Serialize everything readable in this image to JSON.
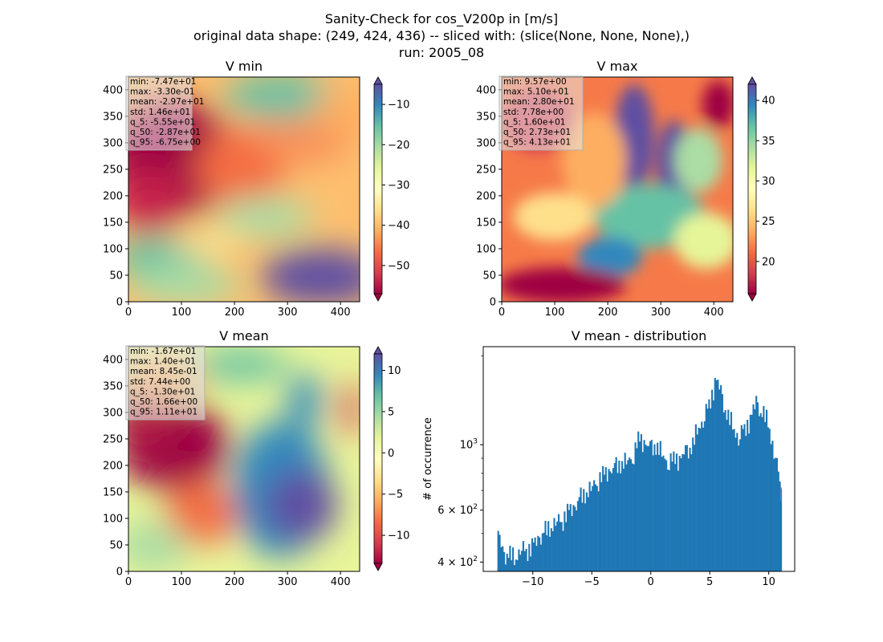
{
  "figure": {
    "title_lines": [
      "Sanity-Check for cos_V200p in [m/s]",
      "original data shape: (249, 424, 436) -- sliced with: (slice(None, None, None),)",
      "run: 2005_08"
    ]
  },
  "chart_data": [
    {
      "type": "heatmap",
      "title": "V min",
      "xlim": [
        0,
        436
      ],
      "ylim": [
        0,
        424
      ],
      "xticks": [
        0,
        100,
        200,
        300,
        400
      ],
      "yticks": [
        0,
        50,
        100,
        150,
        200,
        250,
        300,
        350,
        400
      ],
      "colormap": "Spectral",
      "colorbar": {
        "range": [
          -57,
          -5
        ],
        "ticks": [
          -50,
          -40,
          -30,
          -20,
          -10
        ],
        "extend": "both"
      },
      "stats": [
        "min: -7.47e+01",
        "max: -3.30e-01",
        "mean: -2.97e+01",
        "std: 1.46e+01",
        "q_5: -5.55e+01",
        "q_50: -2.87e+01",
        "q_95: -6.75e+00"
      ]
    },
    {
      "type": "heatmap",
      "title": "V max",
      "xlim": [
        0,
        436
      ],
      "ylim": [
        0,
        424
      ],
      "xticks": [
        0,
        100,
        200,
        300,
        400
      ],
      "yticks": [
        0,
        50,
        100,
        150,
        200,
        250,
        300,
        350,
        400
      ],
      "colormap": "Spectral",
      "colorbar": {
        "range": [
          16,
          42
        ],
        "ticks": [
          20,
          25,
          30,
          35,
          40
        ],
        "extend": "both"
      },
      "stats": [
        "min: 9.57e+00",
        "max: 5.10e+01",
        "mean: 2.80e+01",
        "std: 7.78e+00",
        "q_5: 1.60e+01",
        "q_50: 2.73e+01",
        "q_95: 4.13e+01"
      ]
    },
    {
      "type": "heatmap",
      "title": "V mean",
      "xlim": [
        0,
        436
      ],
      "ylim": [
        0,
        424
      ],
      "xticks": [
        0,
        100,
        200,
        300,
        400
      ],
      "yticks": [
        0,
        50,
        100,
        150,
        200,
        250,
        300,
        350,
        400
      ],
      "colormap": "Spectral",
      "colorbar": {
        "range": [
          -13.4,
          12
        ],
        "ticks": [
          -10,
          -5,
          0,
          5,
          10
        ],
        "extend": "both"
      },
      "stats": [
        "min: -1.67e+01",
        "max: 1.40e+01",
        "mean: 8.45e-01",
        "std: 7.44e+00",
        "q_5: -1.30e+01",
        "q_50: 1.66e+00",
        "q_95: 1.11e+01"
      ]
    },
    {
      "type": "bar",
      "title": "V mean - distribution",
      "ylabel": "# of occurrence",
      "yscale": "log",
      "xlim": [
        -14.2,
        12.2
      ],
      "ylim": [
        372,
        2150
      ],
      "xticks": [
        -10,
        -5,
        0,
        5,
        10
      ],
      "xticklabels": [
        "−10",
        "−5",
        "0",
        "5",
        "10"
      ],
      "yticks": [
        400,
        600,
        1000
      ],
      "yticklabel_base": [
        "4",
        "6",
        "10"
      ],
      "yticklabel_exp": [
        "2",
        "2",
        "3"
      ],
      "bar_color": "#1f77b4",
      "bin_range": [
        -13.0,
        11.1
      ],
      "histogram": [
        [
          -13.0,
          500
        ],
        [
          -12.5,
          430
        ],
        [
          -12.0,
          415
        ],
        [
          -11.5,
          420
        ],
        [
          -11.0,
          440
        ],
        [
          -10.5,
          445
        ],
        [
          -10.0,
          450
        ],
        [
          -9.5,
          480
        ],
        [
          -9.0,
          500
        ],
        [
          -8.5,
          530
        ],
        [
          -8.0,
          550
        ],
        [
          -7.5,
          560
        ],
        [
          -7.0,
          590
        ],
        [
          -6.5,
          610
        ],
        [
          -6.0,
          650
        ],
        [
          -5.5,
          690
        ],
        [
          -5.0,
          720
        ],
        [
          -4.5,
          760
        ],
        [
          -4.0,
          790
        ],
        [
          -3.5,
          810
        ],
        [
          -3.0,
          830
        ],
        [
          -2.5,
          870
        ],
        [
          -2.0,
          880
        ],
        [
          -1.5,
          920
        ],
        [
          -1.0,
          1050
        ],
        [
          -0.5,
          1010
        ],
        [
          0.0,
          960
        ],
        [
          0.5,
          1000
        ],
        [
          1.0,
          920
        ],
        [
          1.5,
          880
        ],
        [
          2.0,
          890
        ],
        [
          2.5,
          900
        ],
        [
          3.0,
          930
        ],
        [
          3.5,
          1000
        ],
        [
          4.0,
          1120
        ],
        [
          4.5,
          1260
        ],
        [
          5.0,
          1360
        ],
        [
          5.5,
          1700
        ],
        [
          6.0,
          1440
        ],
        [
          6.5,
          1260
        ],
        [
          7.0,
          1130
        ],
        [
          7.5,
          1080
        ],
        [
          8.0,
          1130
        ],
        [
          8.5,
          1260
        ],
        [
          9.0,
          1360
        ],
        [
          9.5,
          1280
        ],
        [
          10.0,
          1150
        ],
        [
          10.5,
          960
        ],
        [
          11.0,
          700
        ]
      ]
    }
  ]
}
